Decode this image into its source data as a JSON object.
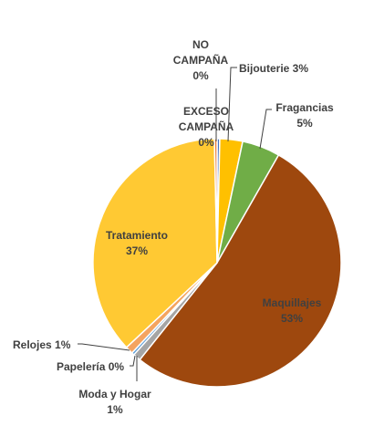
{
  "chart_data": {
    "type": "pie",
    "title": "",
    "legend": "none",
    "slices": [
      {
        "name": "NO CAMPAÑA",
        "value": 0,
        "label": "0%",
        "color": "#4472c4"
      },
      {
        "name": "Bijouterie",
        "value": 3,
        "label": "3%",
        "color": "#ffc000"
      },
      {
        "name": "Fragancias",
        "value": 5,
        "label": "5%",
        "color": "#70ad47"
      },
      {
        "name": "Maquillajes",
        "value": 53,
        "label": "53%",
        "color": "#9e480e"
      },
      {
        "name": "Moda y Hogar",
        "value": 1,
        "label": "1%",
        "color": "#a5a5a5"
      },
      {
        "name": "Papelería",
        "value": 0,
        "label": "0%",
        "color": "#5b9bd5"
      },
      {
        "name": "Relojes",
        "value": 1,
        "label": "1%",
        "color": "#f4a460"
      },
      {
        "name": "Tratamiento",
        "value": 37,
        "label": "37%",
        "color": "#ffc933"
      },
      {
        "name": "EXCESO CAMPAÑA",
        "value": 0,
        "label": "0%",
        "color": "#ed7d31"
      }
    ]
  }
}
